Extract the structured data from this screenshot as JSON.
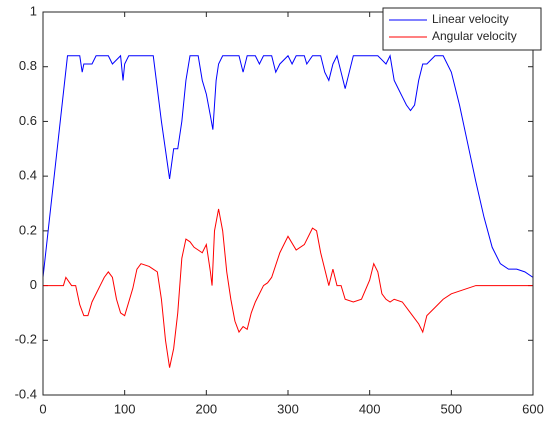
{
  "chart_data": {
    "type": "line",
    "xlim": [
      0,
      600
    ],
    "xticks": [
      0,
      100,
      200,
      300,
      400,
      500,
      600
    ],
    "ylim": [
      -0.4,
      1
    ],
    "yticks": [
      -0.4,
      -0.2,
      0,
      0.2,
      0.4,
      0.6,
      0.8,
      1
    ],
    "legend": "upper right",
    "series": [
      {
        "name": "Linear velocity",
        "color": "#0000ff",
        "x": [
          0,
          30,
          45,
          48,
          50,
          60,
          65,
          80,
          85,
          95,
          98,
          100,
          105,
          135,
          145,
          155,
          160,
          165,
          170,
          175,
          180,
          190,
          195,
          200,
          205,
          208,
          212,
          215,
          220,
          240,
          245,
          250,
          260,
          265,
          270,
          280,
          285,
          290,
          300,
          305,
          310,
          320,
          323,
          330,
          340,
          345,
          350,
          355,
          360,
          365,
          370,
          375,
          380,
          410,
          420,
          425,
          430,
          435,
          440,
          445,
          450,
          455,
          460,
          465,
          470,
          480,
          490,
          500,
          510,
          520,
          530,
          540,
          550,
          560,
          570,
          580,
          590,
          600
        ],
        "values": [
          0.03,
          0.84,
          0.84,
          0.78,
          0.81,
          0.81,
          0.84,
          0.84,
          0.81,
          0.84,
          0.75,
          0.81,
          0.84,
          0.84,
          0.6,
          0.39,
          0.5,
          0.5,
          0.6,
          0.75,
          0.84,
          0.84,
          0.75,
          0.7,
          0.62,
          0.57,
          0.75,
          0.81,
          0.84,
          0.84,
          0.78,
          0.84,
          0.84,
          0.81,
          0.84,
          0.84,
          0.78,
          0.81,
          0.84,
          0.81,
          0.84,
          0.84,
          0.81,
          0.84,
          0.84,
          0.78,
          0.75,
          0.81,
          0.84,
          0.78,
          0.72,
          0.78,
          0.84,
          0.84,
          0.81,
          0.84,
          0.75,
          0.72,
          0.69,
          0.66,
          0.64,
          0.66,
          0.75,
          0.81,
          0.81,
          0.84,
          0.84,
          0.78,
          0.66,
          0.52,
          0.38,
          0.25,
          0.14,
          0.08,
          0.06,
          0.06,
          0.05,
          0.03
        ]
      },
      {
        "name": "Angular velocity",
        "color": "#ff0000",
        "x": [
          0,
          25,
          28,
          35,
          40,
          45,
          50,
          55,
          60,
          65,
          70,
          75,
          80,
          85,
          90,
          95,
          100,
          105,
          110,
          115,
          120,
          130,
          135,
          140,
          145,
          150,
          155,
          160,
          165,
          170,
          175,
          180,
          185,
          190,
          195,
          200,
          205,
          207,
          210,
          215,
          220,
          225,
          230,
          235,
          240,
          245,
          250,
          255,
          260,
          270,
          275,
          280,
          290,
          300,
          310,
          320,
          330,
          335,
          340,
          345,
          350,
          355,
          360,
          365,
          370,
          380,
          390,
          400,
          405,
          410,
          415,
          420,
          425,
          430,
          440,
          450,
          460,
          465,
          470,
          480,
          490,
          500,
          510,
          520,
          530,
          600
        ],
        "values": [
          0,
          0,
          0.03,
          0,
          0,
          -0.07,
          -0.11,
          -0.11,
          -0.06,
          -0.03,
          0,
          0.03,
          0.05,
          0.03,
          -0.05,
          -0.1,
          -0.11,
          -0.06,
          -0.01,
          0.06,
          0.08,
          0.07,
          0.06,
          0.05,
          -0.05,
          -0.2,
          -0.3,
          -0.23,
          -0.1,
          0.1,
          0.17,
          0.16,
          0.14,
          0.13,
          0.12,
          0.15,
          0.05,
          0,
          0.2,
          0.28,
          0.2,
          0.05,
          -0.05,
          -0.13,
          -0.17,
          -0.15,
          -0.16,
          -0.1,
          -0.06,
          0,
          0.01,
          0.03,
          0.12,
          0.18,
          0.13,
          0.15,
          0.21,
          0.2,
          0.12,
          0.06,
          0,
          0.06,
          0,
          0,
          -0.05,
          -0.06,
          -0.05,
          0.02,
          0.08,
          0.05,
          -0.03,
          -0.05,
          -0.06,
          -0.05,
          -0.06,
          -0.1,
          -0.14,
          -0.17,
          -0.11,
          -0.08,
          -0.05,
          -0.03,
          -0.02,
          -0.01,
          0,
          0
        ]
      }
    ]
  }
}
